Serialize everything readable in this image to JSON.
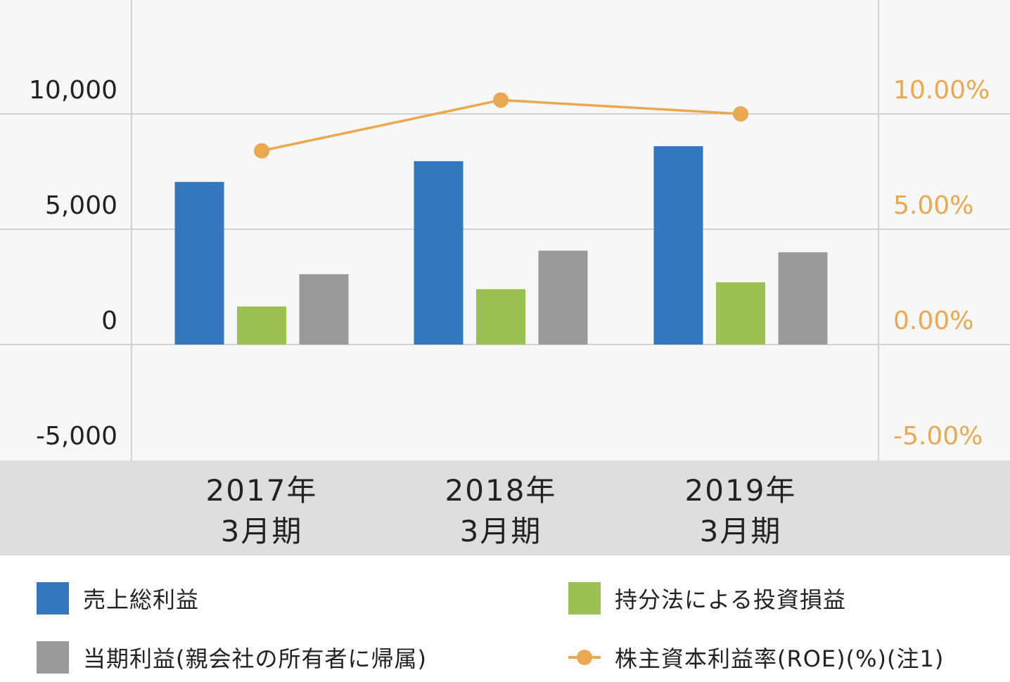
{
  "chart_data": {
    "type": "bar",
    "categories": [
      {
        "line1": "2017年",
        "line2": "3月期"
      },
      {
        "line1": "2018年",
        "line2": "3月期"
      },
      {
        "line1": "2019年",
        "line2": "3月期"
      }
    ],
    "series": [
      {
        "name": "売上総利益",
        "type": "bar",
        "color": "#3378be",
        "values": [
          7050,
          7950,
          8600
        ]
      },
      {
        "name": "持分法による投資損益",
        "type": "bar",
        "color": "#9bc153",
        "values": [
          1650,
          2400,
          2700
        ]
      },
      {
        "name": "当期利益(親会社の所有者に帰属)",
        "type": "bar",
        "color": "#9a9a9a",
        "values": [
          3050,
          4070,
          4000
        ]
      },
      {
        "name": "株主資本利益率(ROE)(%)(注1)",
        "type": "line",
        "axis": "right",
        "color": "#eaa950",
        "values": [
          8.4,
          10.6,
          10.0
        ]
      }
    ],
    "y_left": {
      "ticks": [
        "10,000",
        "5,000",
        "0",
        "-5,000"
      ],
      "tick_values": [
        10000,
        5000,
        0,
        -5000
      ],
      "min": -5000,
      "max": 15000
    },
    "y_right": {
      "ticks": [
        "10.00%",
        "5.00%",
        "0.00%",
        "-5.00%"
      ],
      "tick_values": [
        10,
        5,
        0,
        -5
      ],
      "min": -5,
      "max": 15,
      "color": "#eaa950"
    },
    "grid": true,
    "legend": {
      "position": "bottom"
    }
  }
}
